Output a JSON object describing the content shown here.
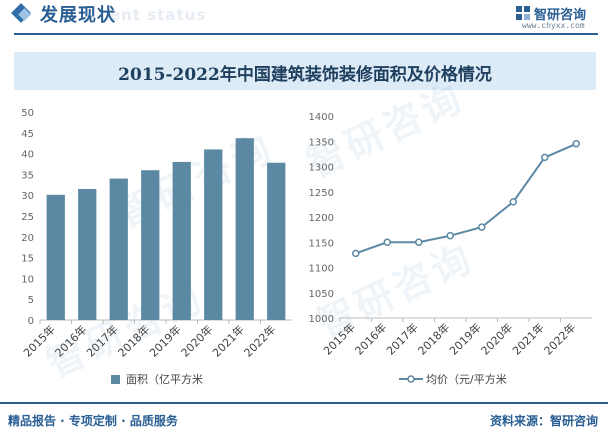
{
  "header": {
    "section_title": "发展现状",
    "section_title_en": "ent status"
  },
  "logo": {
    "name": "智研咨询",
    "url": "www.chyxx.com"
  },
  "banner": {
    "title": "2015-2022年中国建筑装饰装修面积及价格情况"
  },
  "watermark_text": "智研咨询",
  "colors": {
    "brand": "#2a5f94",
    "bar": "#5b88a3",
    "line": "#5b88a3",
    "banner_bg": "#dcebf6"
  },
  "chart_data": [
    {
      "type": "bar",
      "categories": [
        "2015年",
        "2016年",
        "2017年",
        "2018年",
        "2019年",
        "2020年",
        "2021年",
        "2022年"
      ],
      "series": [
        {
          "name": "面积（亿平方米",
          "values": [
            30.1,
            31.5,
            34,
            36,
            38,
            41,
            43.7,
            37.8
          ]
        }
      ],
      "ylim": [
        0,
        50
      ],
      "yticks": [
        0,
        5,
        10,
        15,
        20,
        25,
        30,
        35,
        40,
        45,
        50
      ],
      "legend_position": "bottom",
      "grid": false
    },
    {
      "type": "line",
      "categories": [
        "2015年",
        "2016年",
        "2017年",
        "2018年",
        "2019年",
        "2020年",
        "2021年",
        "2022年"
      ],
      "series": [
        {
          "name": "均价（元/平方米",
          "values": [
            1128,
            1150,
            1150,
            1163,
            1180,
            1230,
            1318,
            1345
          ]
        }
      ],
      "ylim": [
        1000,
        1400
      ],
      "yticks": [
        1000,
        1050,
        1100,
        1150,
        1200,
        1250,
        1300,
        1350,
        1400
      ],
      "legend_position": "bottom",
      "grid": false
    }
  ],
  "footer": {
    "left": "精品报告 · 专项定制 · 品质服务",
    "right": "资料来源：智研咨询"
  }
}
